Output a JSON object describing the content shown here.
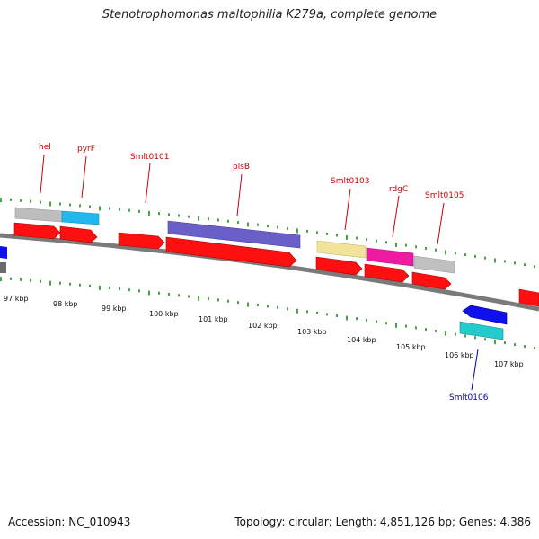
{
  "map": {
    "title": "Stenotrophomonas maltophilia K279a, complete genome",
    "accession": "Accession: NC_010943",
    "summary": "Topology: circular; Length: 4,851,126 bp; Genes: 4,386",
    "colors": {
      "backbone": "#7a7a7a",
      "tick": "#1a8a1a",
      "cds": "#ff1010",
      "label_forward": "#cc0000",
      "label_reverse": "#0000aa"
    },
    "scale_labels": [
      "97 kbp",
      "98 kbp",
      "99 kbp",
      "100 kbp",
      "101 kbp",
      "102 kbp",
      "103 kbp",
      "104 kbp",
      "105 kbp",
      "106 kbp",
      "107 kbp"
    ],
    "genes": [
      {
        "label": "hel",
        "strand": "forward"
      },
      {
        "label": "pyrF",
        "strand": "forward"
      },
      {
        "label": "Smlt0101",
        "strand": "forward"
      },
      {
        "label": "plsB",
        "strand": "forward"
      },
      {
        "label": "Smlt0103",
        "strand": "forward"
      },
      {
        "label": "rdgC",
        "strand": "forward"
      },
      {
        "label": "Smlt0105",
        "strand": "forward"
      },
      {
        "label": "Smlt0106",
        "strand": "reverse"
      }
    ]
  }
}
